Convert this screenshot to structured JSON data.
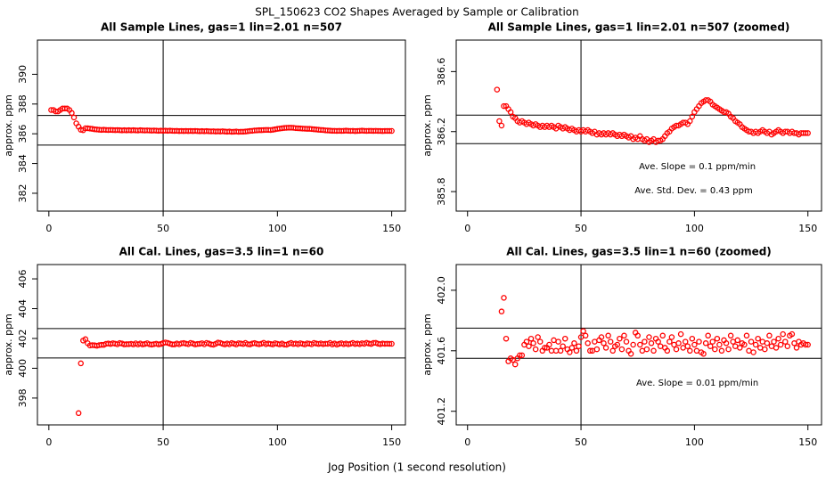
{
  "title": "SPL_150623  CO2 Shapes Averaged by Sample or Calibration",
  "xlabel": "Jog Position (1 second resolution)",
  "chart_data": [
    {
      "type": "scatter",
      "title": "All Sample Lines, gas=1 lin=2.01 n=507",
      "ylabel": "approx. ppm",
      "color": "#ff0000",
      "xlim": [
        -5,
        156
      ],
      "xticks": [
        0,
        50,
        100,
        150
      ],
      "ylim": [
        380.8,
        392.3
      ],
      "yticks": [
        382,
        384,
        386,
        388,
        390
      ],
      "vlines": [
        50
      ],
      "hlines": [
        387.23,
        385.24
      ],
      "x": [
        1,
        2,
        3,
        4,
        5,
        6,
        7,
        8,
        9,
        10,
        11,
        12,
        13,
        14,
        15,
        16,
        17,
        18,
        19,
        20,
        21,
        22,
        23,
        24,
        25,
        26,
        27,
        28,
        29,
        30,
        31,
        32,
        33,
        34,
        35,
        36,
        37,
        38,
        39,
        40,
        41,
        42,
        43,
        44,
        45,
        46,
        47,
        48,
        49,
        50,
        51,
        52,
        53,
        54,
        55,
        56,
        57,
        58,
        59,
        60,
        61,
        62,
        63,
        64,
        65,
        66,
        67,
        68,
        69,
        70,
        71,
        72,
        73,
        74,
        75,
        76,
        77,
        78,
        79,
        80,
        81,
        82,
        83,
        84,
        85,
        86,
        87,
        88,
        89,
        90,
        91,
        92,
        93,
        94,
        95,
        96,
        97,
        98,
        99,
        100,
        101,
        102,
        103,
        104,
        105,
        106,
        107,
        108,
        109,
        110,
        111,
        112,
        113,
        114,
        115,
        116,
        117,
        118,
        119,
        120,
        121,
        122,
        123,
        124,
        125,
        126,
        127,
        128,
        129,
        130,
        131,
        132,
        133,
        134,
        135,
        136,
        137,
        138,
        139,
        140,
        141,
        142,
        143,
        144,
        145,
        146,
        147,
        148,
        149,
        150
      ],
      "values": [
        387.6,
        387.6,
        387.5,
        387.5,
        387.6,
        387.7,
        387.7,
        387.7,
        387.6,
        387.4,
        387.1,
        386.7,
        386.48,
        386.27,
        386.24,
        386.37,
        386.37,
        386.35,
        386.33,
        386.3,
        386.29,
        386.27,
        386.26,
        386.27,
        386.26,
        386.25,
        386.26,
        386.25,
        386.24,
        386.25,
        386.24,
        386.23,
        386.24,
        386.23,
        386.24,
        386.23,
        386.24,
        386.23,
        386.22,
        386.24,
        386.23,
        386.22,
        386.23,
        386.22,
        386.21,
        386.22,
        386.21,
        386.2,
        386.21,
        386.2,
        386.21,
        386.2,
        386.21,
        386.2,
        386.19,
        386.2,
        386.18,
        386.19,
        386.18,
        386.19,
        386.18,
        386.19,
        386.18,
        386.19,
        386.18,
        386.17,
        386.18,
        386.17,
        386.18,
        386.17,
        386.16,
        386.17,
        386.15,
        386.16,
        386.15,
        386.17,
        386.15,
        386.14,
        386.15,
        386.13,
        386.14,
        386.15,
        386.13,
        386.14,
        386.14,
        386.15,
        386.17,
        386.19,
        386.2,
        386.22,
        386.23,
        386.24,
        386.24,
        386.25,
        386.26,
        386.26,
        386.25,
        386.27,
        386.3,
        386.33,
        386.35,
        386.37,
        386.39,
        386.4,
        386.41,
        386.41,
        386.4,
        386.38,
        386.37,
        386.36,
        386.35,
        386.34,
        386.33,
        386.33,
        386.32,
        386.3,
        386.29,
        386.27,
        386.26,
        386.25,
        386.23,
        386.22,
        386.21,
        386.2,
        386.2,
        386.19,
        386.2,
        386.19,
        386.2,
        386.21,
        386.2,
        386.19,
        386.2,
        386.18,
        386.19,
        386.2,
        386.21,
        386.2,
        386.19,
        386.2,
        386.2,
        386.19,
        386.2,
        386.19,
        386.19,
        386.18,
        386.19,
        386.19,
        386.19,
        386.19
      ]
    },
    {
      "type": "scatter",
      "title": "All Sample Lines, gas=1 lin=2.01 n=507 (zoomed)",
      "ylabel": "approx. ppm",
      "color": "#ff0000",
      "xlim": [
        -5,
        156
      ],
      "xticks": [
        0,
        50,
        100,
        150
      ],
      "ylim": [
        385.67,
        386.81
      ],
      "yticks": [
        385.8,
        386.2,
        386.6
      ],
      "vlines": [
        50
      ],
      "hlines": [
        386.31,
        386.12
      ],
      "annotations": [
        "Ave. Slope = 0.1  ppm/min",
        "Ave. Std. Dev. = 0.43  ppm"
      ],
      "x": [
        13,
        14,
        15,
        16,
        17,
        18,
        19,
        20,
        21,
        22,
        23,
        24,
        25,
        26,
        27,
        28,
        29,
        30,
        31,
        32,
        33,
        34,
        35,
        36,
        37,
        38,
        39,
        40,
        41,
        42,
        43,
        44,
        45,
        46,
        47,
        48,
        49,
        50,
        51,
        52,
        53,
        54,
        55,
        56,
        57,
        58,
        59,
        60,
        61,
        62,
        63,
        64,
        65,
        66,
        67,
        68,
        69,
        70,
        71,
        72,
        73,
        74,
        75,
        76,
        77,
        78,
        79,
        80,
        81,
        82,
        83,
        84,
        85,
        86,
        87,
        88,
        89,
        90,
        91,
        92,
        93,
        94,
        95,
        96,
        97,
        98,
        99,
        100,
        101,
        102,
        103,
        104,
        105,
        106,
        107,
        108,
        109,
        110,
        111,
        112,
        113,
        114,
        115,
        116,
        117,
        118,
        119,
        120,
        121,
        122,
        123,
        124,
        125,
        126,
        127,
        128,
        129,
        130,
        131,
        132,
        133,
        134,
        135,
        136,
        137,
        138,
        139,
        140,
        141,
        142,
        143,
        144,
        145,
        146,
        147,
        148,
        149,
        150
      ],
      "values": [
        386.48,
        386.27,
        386.24,
        386.37,
        386.37,
        386.35,
        386.33,
        386.3,
        386.29,
        386.27,
        386.26,
        386.27,
        386.26,
        386.25,
        386.26,
        386.25,
        386.24,
        386.25,
        386.24,
        386.23,
        386.24,
        386.23,
        386.24,
        386.23,
        386.24,
        386.23,
        386.22,
        386.24,
        386.23,
        386.22,
        386.23,
        386.22,
        386.21,
        386.22,
        386.21,
        386.2,
        386.21,
        386.2,
        386.21,
        386.2,
        386.21,
        386.2,
        386.19,
        386.2,
        386.18,
        386.19,
        386.18,
        386.19,
        386.18,
        386.19,
        386.18,
        386.19,
        386.18,
        386.17,
        386.18,
        386.17,
        386.18,
        386.17,
        386.16,
        386.17,
        386.15,
        386.16,
        386.15,
        386.17,
        386.15,
        386.14,
        386.15,
        386.13,
        386.14,
        386.15,
        386.13,
        386.14,
        386.14,
        386.15,
        386.17,
        386.19,
        386.2,
        386.22,
        386.23,
        386.24,
        386.24,
        386.25,
        386.26,
        386.26,
        386.25,
        386.27,
        386.3,
        386.33,
        386.35,
        386.37,
        386.39,
        386.4,
        386.41,
        386.41,
        386.4,
        386.38,
        386.37,
        386.36,
        386.35,
        386.34,
        386.33,
        386.33,
        386.32,
        386.3,
        386.29,
        386.27,
        386.26,
        386.25,
        386.23,
        386.22,
        386.21,
        386.2,
        386.2,
        386.19,
        386.2,
        386.19,
        386.2,
        386.21,
        386.2,
        386.19,
        386.2,
        386.18,
        386.19,
        386.2,
        386.21,
        386.2,
        386.19,
        386.2,
        386.2,
        386.19,
        386.2,
        386.19,
        386.19,
        386.18,
        386.19,
        386.19,
        386.19,
        386.19
      ]
    },
    {
      "type": "scatter",
      "title": "All Cal. Lines, gas=3.5 lin=1 n=60",
      "ylabel": "approx. ppm",
      "color": "#ff0000",
      "xlim": [
        -5,
        156
      ],
      "xticks": [
        0,
        50,
        100,
        150
      ],
      "ylim": [
        396.2,
        406.96
      ],
      "yticks": [
        398,
        400,
        402,
        404,
        406
      ],
      "vlines": [
        50
      ],
      "hlines": [
        402.66,
        400.69
      ],
      "x": [
        13,
        14,
        15,
        16,
        17,
        18,
        19,
        20,
        21,
        22,
        23,
        24,
        25,
        26,
        27,
        28,
        29,
        30,
        31,
        32,
        33,
        34,
        35,
        36,
        37,
        38,
        39,
        40,
        41,
        42,
        43,
        44,
        45,
        46,
        47,
        48,
        49,
        50,
        51,
        52,
        53,
        54,
        55,
        56,
        57,
        58,
        59,
        60,
        61,
        62,
        63,
        64,
        65,
        66,
        67,
        68,
        69,
        70,
        71,
        72,
        73,
        74,
        75,
        76,
        77,
        78,
        79,
        80,
        81,
        82,
        83,
        84,
        85,
        86,
        87,
        88,
        89,
        90,
        91,
        92,
        93,
        94,
        95,
        96,
        97,
        98,
        99,
        100,
        101,
        102,
        103,
        104,
        105,
        106,
        107,
        108,
        109,
        110,
        111,
        112,
        113,
        114,
        115,
        116,
        117,
        118,
        119,
        120,
        121,
        122,
        123,
        124,
        125,
        126,
        127,
        128,
        129,
        130,
        131,
        132,
        133,
        134,
        135,
        136,
        137,
        138,
        139,
        140,
        141,
        142,
        143,
        144,
        145,
        146,
        147,
        148,
        149,
        150
      ],
      "values": [
        396.99,
        400.33,
        401.86,
        401.95,
        401.68,
        401.53,
        401.55,
        401.54,
        401.51,
        401.55,
        401.57,
        401.57,
        401.64,
        401.66,
        401.63,
        401.68,
        401.65,
        401.61,
        401.69,
        401.66,
        401.6,
        401.62,
        401.62,
        401.64,
        401.6,
        401.67,
        401.6,
        401.66,
        401.6,
        401.63,
        401.68,
        401.61,
        401.59,
        401.62,
        401.65,
        401.6,
        401.63,
        401.69,
        401.73,
        401.7,
        401.65,
        401.6,
        401.6,
        401.66,
        401.61,
        401.67,
        401.69,
        401.65,
        401.62,
        401.7,
        401.66,
        401.6,
        401.63,
        401.64,
        401.68,
        401.61,
        401.7,
        401.66,
        401.6,
        401.58,
        401.64,
        401.72,
        401.7,
        401.64,
        401.6,
        401.66,
        401.61,
        401.69,
        401.65,
        401.6,
        401.68,
        401.66,
        401.63,
        401.7,
        401.62,
        401.6,
        401.66,
        401.69,
        401.64,
        401.61,
        401.65,
        401.71,
        401.62,
        401.66,
        401.63,
        401.6,
        401.68,
        401.64,
        401.6,
        401.66,
        401.59,
        401.58,
        401.65,
        401.7,
        401.63,
        401.66,
        401.61,
        401.68,
        401.64,
        401.6,
        401.67,
        401.65,
        401.61,
        401.7,
        401.66,
        401.63,
        401.67,
        401.62,
        401.65,
        401.64,
        401.7,
        401.6,
        401.66,
        401.59,
        401.64,
        401.68,
        401.62,
        401.66,
        401.61,
        401.65,
        401.7,
        401.63,
        401.66,
        401.62,
        401.68,
        401.64,
        401.71,
        401.66,
        401.63,
        401.7,
        401.71,
        401.65,
        401.62,
        401.66,
        401.64,
        401.65,
        401.64,
        401.64
      ]
    },
    {
      "type": "scatter",
      "title": "All Cal. Lines, gas=3.5 lin=1 n=60 (zoomed)",
      "ylabel": "approx. ppm",
      "color": "#ff0000",
      "xlim": [
        -5,
        156
      ],
      "xticks": [
        0,
        50,
        100,
        150
      ],
      "ylim": [
        401.11,
        402.17
      ],
      "yticks": [
        401.2,
        401.6,
        {
          "value": 402,
          "label": "402.0"
        }
      ],
      "vlines": [
        50
      ],
      "hlines": [
        401.75,
        401.55
      ],
      "annotations": [
        "Ave. Slope =  0.01  ppm/min"
      ],
      "x": [
        15,
        16,
        17,
        18,
        19,
        20,
        21,
        22,
        23,
        24,
        25,
        26,
        27,
        28,
        29,
        30,
        31,
        32,
        33,
        34,
        35,
        36,
        37,
        38,
        39,
        40,
        41,
        42,
        43,
        44,
        45,
        46,
        47,
        48,
        49,
        50,
        51,
        52,
        53,
        54,
        55,
        56,
        57,
        58,
        59,
        60,
        61,
        62,
        63,
        64,
        65,
        66,
        67,
        68,
        69,
        70,
        71,
        72,
        73,
        74,
        75,
        76,
        77,
        78,
        79,
        80,
        81,
        82,
        83,
        84,
        85,
        86,
        87,
        88,
        89,
        90,
        91,
        92,
        93,
        94,
        95,
        96,
        97,
        98,
        99,
        100,
        101,
        102,
        103,
        104,
        105,
        106,
        107,
        108,
        109,
        110,
        111,
        112,
        113,
        114,
        115,
        116,
        117,
        118,
        119,
        120,
        121,
        122,
        123,
        124,
        125,
        126,
        127,
        128,
        129,
        130,
        131,
        132,
        133,
        134,
        135,
        136,
        137,
        138,
        139,
        140,
        141,
        142,
        143,
        144,
        145,
        146,
        147,
        148,
        149,
        150
      ],
      "values": [
        401.86,
        401.95,
        401.68,
        401.53,
        401.55,
        401.54,
        401.51,
        401.55,
        401.57,
        401.57,
        401.64,
        401.66,
        401.63,
        401.68,
        401.65,
        401.61,
        401.69,
        401.66,
        401.6,
        401.62,
        401.62,
        401.64,
        401.6,
        401.67,
        401.6,
        401.66,
        401.6,
        401.63,
        401.68,
        401.61,
        401.59,
        401.62,
        401.65,
        401.6,
        401.63,
        401.69,
        401.73,
        401.7,
        401.65,
        401.6,
        401.6,
        401.66,
        401.61,
        401.67,
        401.69,
        401.65,
        401.62,
        401.7,
        401.66,
        401.6,
        401.63,
        401.64,
        401.68,
        401.61,
        401.7,
        401.66,
        401.6,
        401.58,
        401.64,
        401.72,
        401.7,
        401.64,
        401.6,
        401.66,
        401.61,
        401.69,
        401.65,
        401.6,
        401.68,
        401.66,
        401.63,
        401.7,
        401.62,
        401.6,
        401.66,
        401.69,
        401.64,
        401.61,
        401.65,
        401.71,
        401.62,
        401.66,
        401.63,
        401.6,
        401.68,
        401.64,
        401.6,
        401.66,
        401.59,
        401.58,
        401.65,
        401.7,
        401.63,
        401.66,
        401.61,
        401.68,
        401.64,
        401.6,
        401.67,
        401.65,
        401.61,
        401.7,
        401.66,
        401.63,
        401.67,
        401.62,
        401.65,
        401.64,
        401.7,
        401.6,
        401.66,
        401.59,
        401.64,
        401.68,
        401.62,
        401.66,
        401.61,
        401.65,
        401.7,
        401.63,
        401.66,
        401.62,
        401.68,
        401.64,
        401.71,
        401.66,
        401.63,
        401.7,
        401.71,
        401.65,
        401.62,
        401.66,
        401.64,
        401.65,
        401.64,
        401.64
      ]
    }
  ]
}
